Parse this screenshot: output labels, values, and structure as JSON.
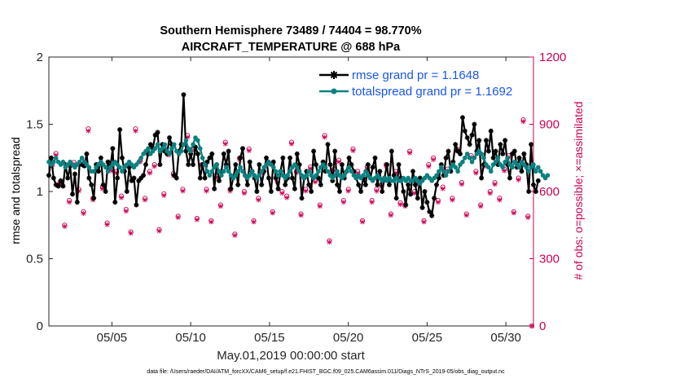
{
  "chart_data": {
    "type": "line",
    "title_line1": "Southern Hemisphere 73489 / 74404 = 98.770%",
    "title_line2": "AIRCRAFT_TEMPERATURE @ 688 hPa",
    "xlabel": "May.01,2019 00:00:00 start",
    "ylabel_left": "rmse and totalspread",
    "ylabel_right": "# of obs: o=possible; ×=assimilated",
    "footer": "data file: /Users/raeder/DAI/ATM_forcXX/CAM6_setup/f.e21.FHIST_BGC.f09_025.CAM6assim.011/Diags_NTrS_2019-05/obs_diag_output.nc",
    "xlim": [
      1.0,
      31.75
    ],
    "ylim_left": [
      0,
      2
    ],
    "ylim_right": [
      0,
      1200
    ],
    "xticks": [
      5,
      10,
      15,
      20,
      25,
      30
    ],
    "xtick_labels": [
      "05/05",
      "05/10",
      "05/15",
      "05/20",
      "05/25",
      "05/30"
    ],
    "yticks_left": [
      0,
      0.5,
      1,
      1.5,
      2
    ],
    "ytick_labels_left": [
      "0",
      "0.5",
      "1",
      "1.5",
      "2"
    ],
    "yticks_right": [
      0,
      300,
      600,
      900,
      1200
    ],
    "ytick_labels_right": [
      "0",
      "300",
      "600",
      "900",
      "1200"
    ],
    "colors": {
      "rmse": "#000000",
      "spread": "#0d8080",
      "obs": "#cc0055",
      "legend_text": "#1a56e8",
      "frame": "#262626"
    },
    "series": [
      {
        "name": "rmse grand pr = 1.1648",
        "values": [
          1.12,
          1.25,
          1.1,
          1.05,
          1.04,
          1.08,
          1.04,
          1.2,
          1.1,
          1.19,
          0.98,
          1.13,
          0.92,
          1.21,
          1.2,
          1.19,
          1.28,
          1.1,
          1.05,
          0.95,
          1.2,
          1.15,
          1.25,
          1.05,
          1.0,
          1.22,
          1.18,
          1.32,
          0.92,
          1.1,
          1.46,
          1.25,
          1.15,
          1.0,
          1.18,
          1.08,
          1.1,
          0.9,
          1.08,
          1.1,
          1.12,
          1.2,
          1.28,
          1.35,
          1.32,
          1.42,
          1.44,
          1.2,
          1.35,
          1.3,
          1.28,
          1.4,
          1.35,
          1.12,
          1.1,
          1.3,
          1.35,
          1.72,
          1.3,
          1.2,
          1.28,
          1.2,
          1.33,
          1.28,
          1.1,
          1.2,
          1.1,
          1.22,
          1.25,
          1.28,
          1.02,
          1.2,
          1.08,
          1.15,
          1.28,
          1.2,
          1.3,
          1.02,
          1.1,
          1.2,
          1.05,
          1.25,
          1.32,
          1.12,
          1.05,
          1.22,
          1.15,
          1.1,
          1.0,
          1.2,
          1.05,
          1.15,
          1.25,
          1.1,
          1.0,
          1.22,
          1.1,
          1.02,
          1.15,
          1.25,
          1.05,
          1.1,
          1.25,
          1.1,
          1.02,
          1.28,
          1.2,
          0.95,
          1.1,
          1.15,
          1.05,
          1.0,
          1.3,
          1.2,
          1.1,
          1.05,
          1.22,
          1.15,
          1.35,
          1.2,
          1.08,
          1.3,
          1.05,
          1.0,
          1.2,
          1.1,
          1.15,
          1.25,
          1.2,
          1.15,
          1.1,
          1.05,
          1.0,
          1.1,
          1.05,
          1.2,
          1.1,
          1.18,
          1.25,
          1.05,
          1.15,
          1.0,
          1.1,
          1.2,
          1.05,
          1.3,
          1.12,
          0.95,
          1.2,
          1.1,
          1.0,
          0.9,
          1.05,
          0.98,
          1.15,
          1.05,
          0.95,
          1.1,
          0.88,
          1.0,
          0.92,
          0.85,
          0.82,
          0.95,
          1.05,
          1.1,
          1.2,
          1.12,
          1.25,
          1.3,
          1.15,
          1.22,
          1.35,
          1.3,
          1.28,
          1.55,
          1.45,
          1.4,
          1.35,
          1.42,
          1.5,
          1.3,
          1.38,
          1.1,
          1.2,
          1.38,
          1.3,
          1.45,
          1.25,
          1.3,
          1.2,
          1.35,
          1.28,
          1.38,
          1.2,
          1.1,
          1.28,
          1.3,
          1.18,
          1.25,
          1.15,
          1.28,
          1.2,
          1.0,
          1.35,
          1.05,
          1.0,
          1.08
        ],
        "x_start": 1.0,
        "x_step": 0.15
      },
      {
        "name": "totalspread grand pr = 1.1692",
        "values": [
          1.22,
          1.2,
          1.22,
          1.25,
          1.22,
          1.2,
          1.22,
          1.18,
          1.2,
          1.22,
          1.2,
          1.18,
          1.2,
          1.22,
          1.25,
          1.22,
          1.2,
          1.18,
          1.15,
          1.15,
          1.18,
          1.2,
          1.22,
          1.2,
          1.18,
          1.15,
          1.18,
          1.2,
          1.22,
          1.2,
          1.18,
          1.15,
          1.18,
          1.2,
          1.22,
          1.2,
          1.18,
          1.2,
          1.22,
          1.25,
          1.28,
          1.3,
          1.32,
          1.28,
          1.3,
          1.32,
          1.35,
          1.3,
          1.32,
          1.35,
          1.3,
          1.28,
          1.32,
          1.35,
          1.3,
          1.28,
          1.3,
          1.35,
          1.38,
          1.32,
          1.3,
          1.35,
          1.4,
          1.38,
          1.32,
          1.25,
          1.2,
          1.15,
          1.12,
          1.15,
          1.18,
          1.2,
          1.15,
          1.12,
          1.15,
          1.18,
          1.15,
          1.12,
          1.1,
          1.12,
          1.15,
          1.18,
          1.15,
          1.12,
          1.1,
          1.12,
          1.15,
          1.12,
          1.1,
          1.12,
          1.15,
          1.18,
          1.2,
          1.22,
          1.2,
          1.18,
          1.15,
          1.12,
          1.15,
          1.12,
          1.1,
          1.12,
          1.15,
          1.18,
          1.2,
          1.18,
          1.15,
          1.12,
          1.1,
          1.12,
          1.15,
          1.12,
          1.1,
          1.12,
          1.15,
          1.18,
          1.2,
          1.18,
          1.15,
          1.12,
          1.1,
          1.12,
          1.15,
          1.12,
          1.1,
          1.12,
          1.15,
          1.18,
          1.15,
          1.12,
          1.1,
          1.12,
          1.1,
          1.12,
          1.15,
          1.12,
          1.1,
          1.08,
          1.1,
          1.12,
          1.1,
          1.08,
          1.1,
          1.08,
          1.1,
          1.08,
          1.08,
          1.1,
          1.08,
          1.08,
          1.1,
          1.08,
          1.1,
          1.08,
          1.08,
          1.1,
          1.08,
          1.06,
          1.08,
          1.1,
          1.12,
          1.1,
          1.08,
          1.1,
          1.12,
          1.15,
          1.18,
          1.15,
          1.12,
          1.15,
          1.18,
          1.2,
          1.18,
          1.15,
          1.2,
          1.22,
          1.25,
          1.28,
          1.25,
          1.22,
          1.25,
          1.28,
          1.3,
          1.28,
          1.25,
          1.2,
          1.18,
          1.15,
          1.2,
          1.22,
          1.25,
          1.2,
          1.18,
          1.22,
          1.25,
          1.2,
          1.18,
          1.22,
          1.2,
          1.18,
          1.22,
          1.2,
          1.18,
          1.15,
          1.18,
          1.2,
          1.15,
          1.18,
          1.15,
          1.12,
          1.1,
          1.12
        ],
        "x_start": 1.0,
        "x_step": 0.15
      }
    ],
    "obs_possible": {
      "x": [
        1.2,
        1.45,
        1.7,
        2.0,
        2.3,
        2.6,
        2.9,
        3.2,
        3.5,
        3.8,
        4.1,
        4.4,
        4.7,
        5.0,
        5.3,
        5.6,
        5.9,
        6.2,
        6.5,
        6.8,
        7.1,
        7.4,
        7.7,
        8.0,
        8.3,
        8.6,
        8.9,
        9.2,
        9.5,
        9.8,
        10.1,
        10.4,
        10.7,
        11.0,
        11.3,
        11.6,
        11.9,
        12.2,
        12.5,
        12.8,
        13.1,
        13.4,
        13.7,
        14.0,
        14.3,
        14.6,
        14.9,
        15.2,
        15.5,
        15.8,
        16.1,
        16.4,
        16.7,
        17.0,
        17.3,
        17.6,
        17.9,
        18.2,
        18.5,
        18.8,
        19.1,
        19.4,
        19.7,
        20.0,
        20.3,
        20.6,
        20.9,
        21.2,
        21.5,
        21.8,
        22.1,
        22.4,
        22.7,
        23.0,
        23.3,
        23.6,
        23.9,
        24.2,
        24.5,
        24.8,
        25.1,
        25.4,
        25.7,
        26.0,
        26.3,
        26.6,
        26.9,
        27.2,
        27.5,
        27.8,
        28.1,
        28.4,
        28.7,
        29.0,
        29.3,
        29.6,
        29.9,
        30.2,
        30.5,
        30.8,
        31.1,
        31.4,
        31.65
      ],
      "y": [
        720,
        770,
        640,
        450,
        560,
        730,
        610,
        510,
        880,
        570,
        720,
        620,
        460,
        700,
        690,
        580,
        520,
        420,
        880,
        740,
        570,
        690,
        720,
        430,
        590,
        770,
        680,
        490,
        610,
        850,
        790,
        480,
        720,
        610,
        470,
        670,
        540,
        820,
        610,
        410,
        750,
        600,
        790,
        470,
        570,
        690,
        730,
        510,
        650,
        600,
        580,
        820,
        690,
        500,
        610,
        710,
        650,
        540,
        850,
        380,
        700,
        740,
        560,
        610,
        790,
        690,
        470,
        710,
        560,
        610,
        630,
        720,
        500,
        690,
        550,
        540,
        780,
        600,
        640,
        470,
        720,
        750,
        560,
        620,
        700,
        570,
        790,
        640,
        500,
        760,
        690,
        540,
        720,
        600,
        640,
        570,
        700,
        760,
        510,
        660,
        920,
        490,
        0
      ]
    },
    "obs_assimilated": {
      "x": [
        1.2,
        1.45,
        1.7,
        2.0,
        2.3,
        2.6,
        2.9,
        3.2,
        3.5,
        3.8,
        4.1,
        4.4,
        4.7,
        5.0,
        5.3,
        5.6,
        5.9,
        6.2,
        6.5,
        6.8,
        7.1,
        7.4,
        7.7,
        8.0,
        8.3,
        8.6,
        8.9,
        9.2,
        9.5,
        9.8,
        10.1,
        10.4,
        10.7,
        11.0,
        11.3,
        11.6,
        11.9,
        12.2,
        12.5,
        12.8,
        13.1,
        13.4,
        13.7,
        14.0,
        14.3,
        14.6,
        14.9,
        15.2,
        15.5,
        15.8,
        16.1,
        16.4,
        16.7,
        17.0,
        17.3,
        17.6,
        17.9,
        18.2,
        18.5,
        18.8,
        19.1,
        19.4,
        19.7,
        20.0,
        20.3,
        20.6,
        20.9,
        21.2,
        21.5,
        21.8,
        22.1,
        22.4,
        22.7,
        23.0,
        23.3,
        23.6,
        23.9,
        24.2,
        24.5,
        24.8,
        25.1,
        25.4,
        25.7,
        26.0,
        26.3,
        26.6,
        26.9,
        27.2,
        27.5,
        27.8,
        28.1,
        28.4,
        28.7,
        29.0,
        29.3,
        29.6,
        29.9,
        30.2,
        30.5,
        30.8,
        31.1,
        31.4,
        31.65
      ],
      "y": [
        712,
        762,
        632,
        444,
        552,
        722,
        602,
        502,
        870,
        562,
        712,
        612,
        452,
        692,
        682,
        572,
        512,
        414,
        870,
        732,
        562,
        682,
        712,
        424,
        582,
        762,
        672,
        484,
        602,
        842,
        782,
        474,
        712,
        602,
        464,
        662,
        534,
        812,
        602,
        404,
        742,
        592,
        782,
        464,
        562,
        682,
        722,
        504,
        642,
        592,
        572,
        812,
        682,
        494,
        602,
        702,
        642,
        534,
        842,
        374,
        692,
        732,
        552,
        602,
        782,
        682,
        464,
        702,
        552,
        602,
        622,
        712,
        494,
        682,
        542,
        534,
        772,
        592,
        632,
        464,
        712,
        742,
        552,
        612,
        692,
        562,
        782,
        632,
        494,
        752,
        682,
        534,
        712,
        592,
        632,
        562,
        692,
        752,
        504,
        652,
        912,
        484,
        0
      ]
    }
  }
}
